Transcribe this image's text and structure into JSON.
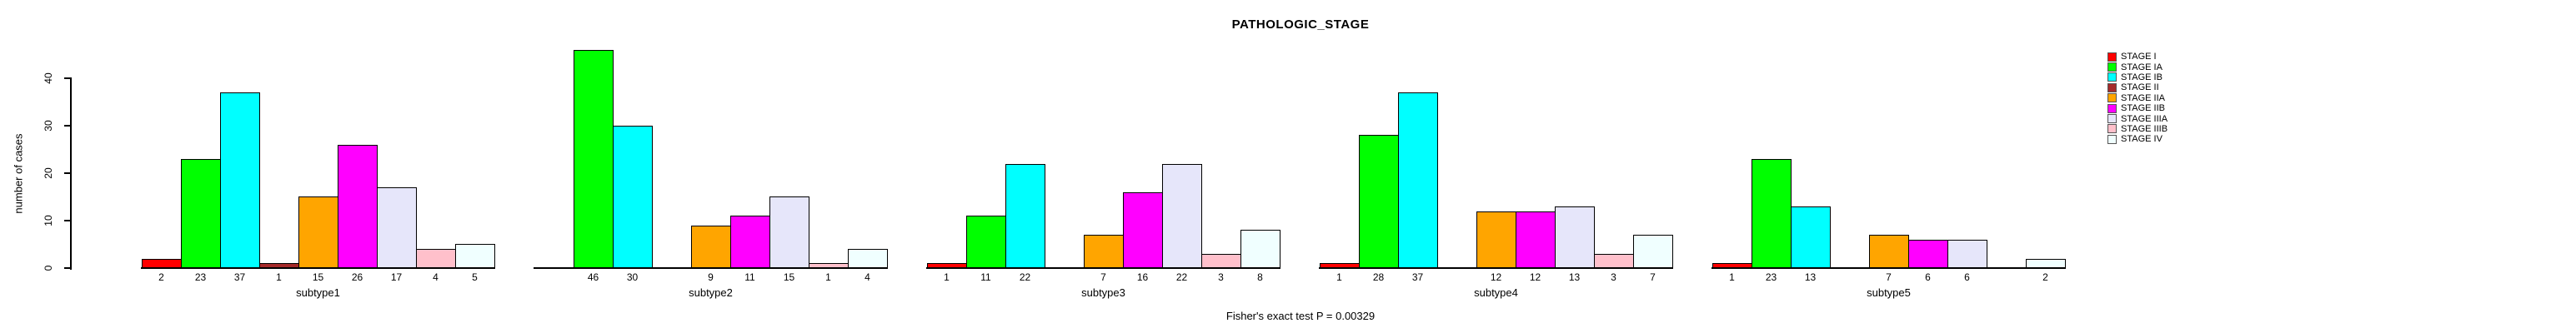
{
  "chart_data": {
    "type": "bar",
    "title": "PATHOLOGIC_STAGE",
    "ylabel": "number of cases",
    "footer_note": "Fisher's exact test P = 0.00329",
    "y_ticks": [
      0,
      10,
      20,
      30,
      40
    ],
    "ylim": [
      0,
      46
    ],
    "grid": false,
    "bar_value_labels_visible": true,
    "legend_position": "right",
    "categories": [
      "subtype1",
      "subtype2",
      "subtype3",
      "subtype4",
      "subtype5"
    ],
    "series": [
      {
        "name": "STAGE I",
        "color": "#FF0000",
        "values": [
          2,
          0,
          1,
          1,
          1
        ]
      },
      {
        "name": "STAGE IA",
        "color": "#00FF00",
        "values": [
          23,
          46,
          11,
          28,
          23
        ]
      },
      {
        "name": "STAGE IB",
        "color": "#00FFFF",
        "values": [
          37,
          30,
          22,
          37,
          13
        ]
      },
      {
        "name": "STAGE II",
        "color": "#A52A2A",
        "values": [
          1,
          0,
          0,
          0,
          0
        ]
      },
      {
        "name": "STAGE IIA",
        "color": "#FFA500",
        "values": [
          15,
          9,
          7,
          12,
          7
        ]
      },
      {
        "name": "STAGE IIB",
        "color": "#FF00FF",
        "values": [
          26,
          11,
          16,
          12,
          6
        ]
      },
      {
        "name": "STAGE IIIA",
        "color": "#E6E6FA",
        "values": [
          17,
          15,
          22,
          13,
          6
        ]
      },
      {
        "name": "STAGE IIIB",
        "color": "#FFC0CB",
        "values": [
          4,
          1,
          3,
          3,
          0
        ]
      },
      {
        "name": "STAGE IV",
        "color": "#F0FFFF",
        "values": [
          5,
          4,
          8,
          7,
          2
        ]
      }
    ]
  }
}
